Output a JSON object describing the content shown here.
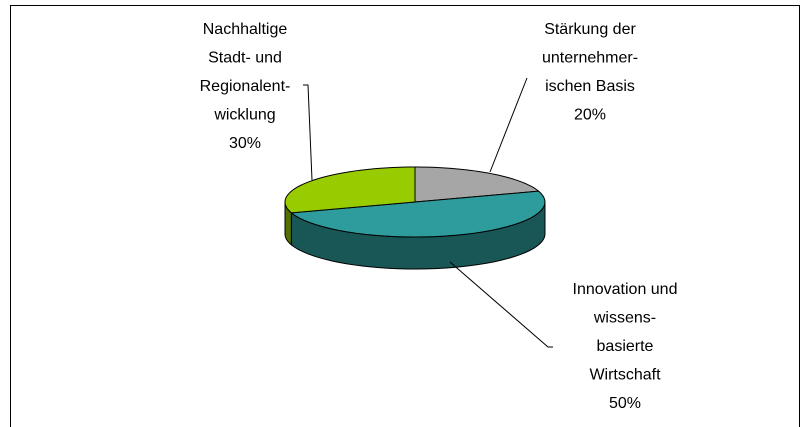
{
  "chart_data": {
    "type": "pie3d",
    "categories": [
      [
        "Stärkung der",
        "unternehmer-",
        "ischen Basis"
      ],
      [
        "Innovation und",
        "wissens-",
        "basierte",
        "Wirtschaft"
      ],
      [
        "Nachhaltige",
        "Stadt- und",
        "Regionalent-",
        "wicklung"
      ]
    ],
    "values": [
      20,
      50,
      30
    ],
    "value_labels": [
      "20%",
      "50%",
      "30%"
    ],
    "colors": [
      "#a6a6a6",
      "#2e9c9c",
      "#99cc00"
    ]
  }
}
